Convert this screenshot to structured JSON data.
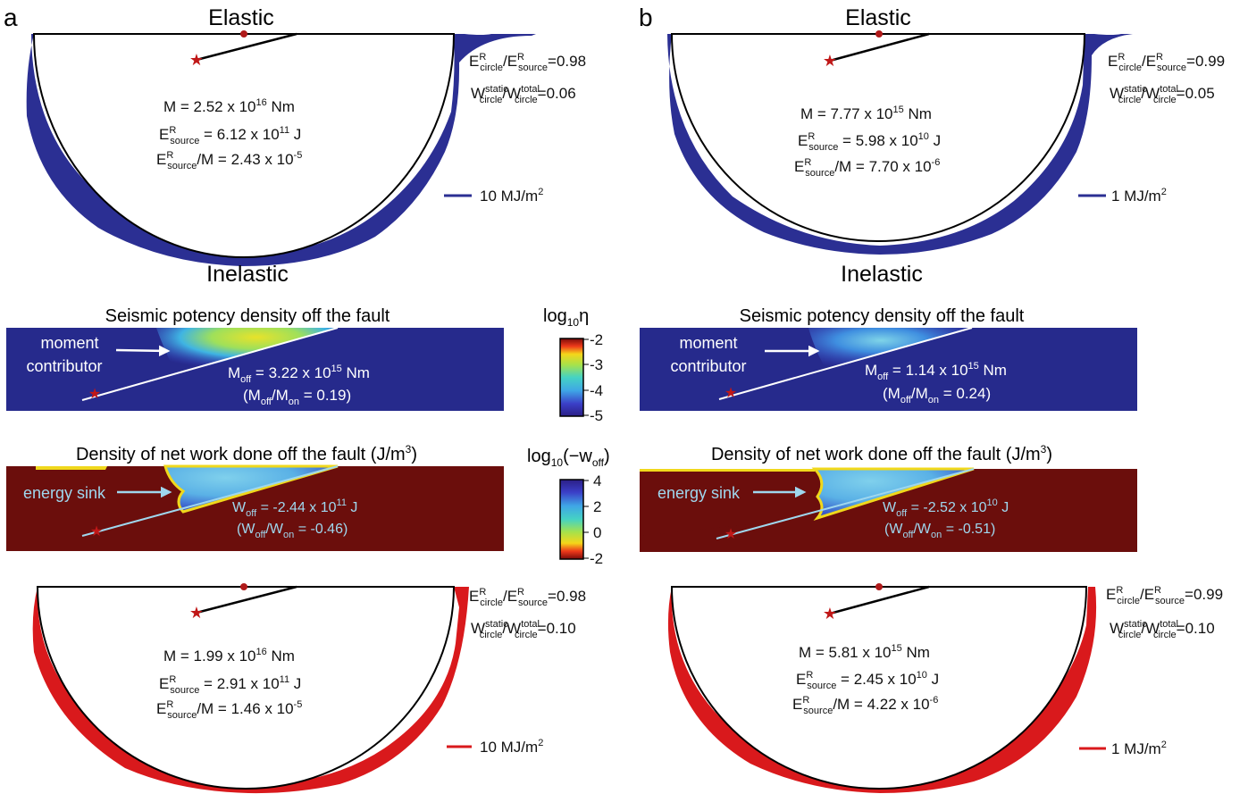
{
  "panels": [
    {
      "letter": "a",
      "elastic": {
        "title": "Elastic",
        "ratio_energy_text": "=0.98",
        "ratio_work_text": "=0.06",
        "moment": "M = 2.52 x 10",
        "moment_exp": "16",
        "moment_unit": " Nm",
        "energy_val": " = 6.12 x 10",
        "energy_exp": "11",
        "energy_unit": " J",
        "scaled_val": "/M = 2.43 x 10",
        "scaled_exp": "-5",
        "scale_label": "10 MJ/m",
        "scale_exp": "2"
      },
      "inelastic_title": "Inelastic",
      "potency": {
        "title": "Seismic potency density off the fault",
        "arrow_label_1": "moment",
        "arrow_label_2": "contributor",
        "moff_val": " = 3.22 x 10",
        "moff_exp": "15",
        "moff_unit": " Nm",
        "ratio_open": "(M",
        "ratio_mid": "/M",
        "ratio_close": " = 0.19)"
      },
      "work": {
        "title": "Density of net work done off the fault (J/m",
        "title_exp": "3",
        "title_close": ")",
        "arrow_label": "energy sink",
        "woff_val": " = -2.44 x 10",
        "woff_exp": "11",
        "woff_unit": " J",
        "ratio_open": "(W",
        "ratio_mid": "/W",
        "ratio_close": " = -0.46)"
      },
      "inelastic_circle": {
        "ratio_energy_text": "=0.98",
        "ratio_work_text": "=0.10",
        "moment": "M = 1.99 x 10",
        "moment_exp": "16",
        "moment_unit": " Nm",
        "energy_val": " = 2.91 x 10",
        "energy_exp": "11",
        "energy_unit": " J",
        "scaled_val": "/M = 1.46 x 10",
        "scaled_exp": "-5",
        "scale_label": "10 MJ/m",
        "scale_exp": "2"
      }
    },
    {
      "letter": "b",
      "elastic": {
        "title": "Elastic",
        "ratio_energy_text": "=0.99",
        "ratio_work_text": "=0.05",
        "moment": "M = 7.77 x 10",
        "moment_exp": "15",
        "moment_unit": " Nm",
        "energy_val": " = 5.98 x 10",
        "energy_exp": "10",
        "energy_unit": " J",
        "scaled_val": "/M = 7.70 x 10",
        "scaled_exp": "-6",
        "scale_label": "1 MJ/m",
        "scale_exp": "2"
      },
      "inelastic_title": "Inelastic",
      "potency": {
        "title": "Seismic potency density off the fault",
        "arrow_label_1": "moment",
        "arrow_label_2": "contributor",
        "moff_val": " = 1.14 x 10",
        "moff_exp": "15",
        "moff_unit": " Nm",
        "ratio_open": "(M",
        "ratio_mid": "/M",
        "ratio_close": " = 0.24)"
      },
      "work": {
        "title": "Density of net work done off the fault (J/m",
        "title_exp": "3",
        "title_close": ")",
        "arrow_label": "energy sink",
        "woff_val": " = -2.52 x 10",
        "woff_exp": "10",
        "woff_unit": " J",
        "ratio_open": "(W",
        "ratio_mid": "/W",
        "ratio_close": " = -0.51)"
      },
      "inelastic_circle": {
        "ratio_energy_text": "=0.99",
        "ratio_work_text": "=0.10",
        "moment": "M = 5.81 x 10",
        "moment_exp": "15",
        "moment_unit": " Nm",
        "energy_val": " = 2.45 x 10",
        "energy_exp": "10",
        "energy_unit": " J",
        "scaled_val": "/M = 4.22 x 10",
        "scaled_exp": "-6",
        "scale_label": "1 MJ/m",
        "scale_exp": "2"
      }
    }
  ],
  "symbols": {
    "E": "E",
    "W": "W",
    "M": "M",
    "R": "R",
    "circle": "circle",
    "source": "source",
    "static": "static",
    "total": "total",
    "off": "off",
    "on": "on",
    "slash": "/"
  },
  "colorbars": {
    "potency": {
      "label_main": "log",
      "label_sub": "10",
      "label_sym": "η",
      "ticks": [
        "-2",
        "-3",
        "-4",
        "-5"
      ]
    },
    "work": {
      "label_main": "log",
      "label_sub": "10",
      "label_rest": "(−w",
      "label_rest_sub": "off",
      "label_close": ")",
      "ticks": [
        "4",
        "2",
        "0",
        "-2"
      ]
    }
  },
  "colors": {
    "elastic_fill": "#2b2f93",
    "inelastic_fill": "#d9191c",
    "star": "#c01818",
    "hypo_dot": "#b01a1a",
    "potency_bg": "#262a8c",
    "work_bg": "#6b0e0c",
    "label_light": "#9fd7ee"
  }
}
